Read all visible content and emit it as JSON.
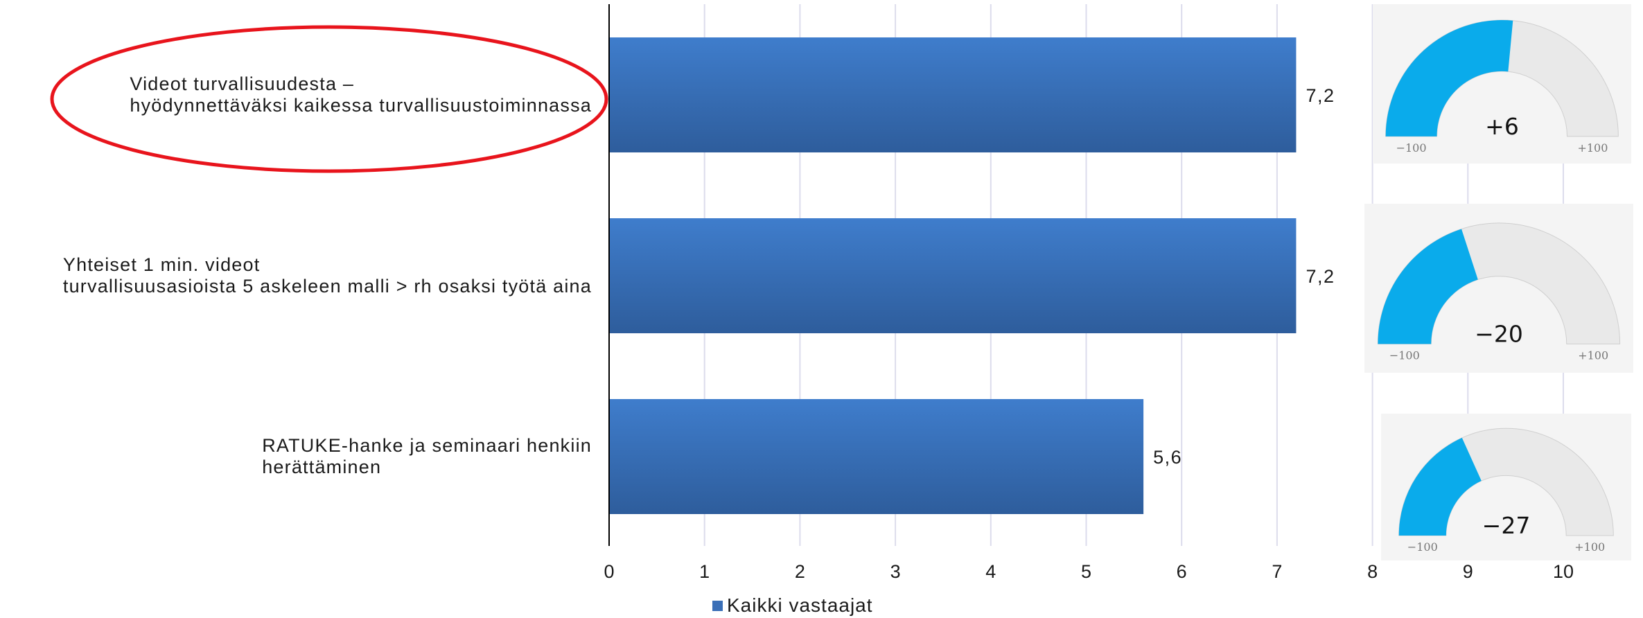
{
  "chart_data": {
    "type": "bar",
    "orientation": "horizontal",
    "categories": [
      {
        "lines": [
          "Videot turvallisuudesta –",
          "hyödynnettäväksi kaikessa turvallisuustoiminnassa"
        ],
        "highlighted": true
      },
      {
        "lines": [
          "Yhteiset 1 min. videot",
          "turvallisuusasioista 5 askeleen malli > rh osaksi työtä aina"
        ],
        "highlighted": false
      },
      {
        "lines": [
          "RATUKE-hanke ja seminaari henkiin",
          "herättäminen"
        ],
        "highlighted": false
      }
    ],
    "series": [
      {
        "name": "Kaikki vastaajat",
        "values": [
          7.2,
          7.2,
          5.6
        ],
        "value_labels": [
          "7,2",
          "7,2",
          "5,6"
        ],
        "color": "#3a6fb7"
      }
    ],
    "xlim": [
      0,
      10
    ],
    "x_ticks": [
      "0",
      "1",
      "2",
      "3",
      "4",
      "5",
      "6",
      "7",
      "8",
      "9",
      "10"
    ],
    "grid": true,
    "legend": "bottom"
  },
  "gauges": [
    {
      "value": 6,
      "label": "+6",
      "min_label": "−100",
      "max_label": "+100"
    },
    {
      "value": -20,
      "label": "−20",
      "min_label": "−100",
      "max_label": "+100"
    },
    {
      "value": -27,
      "label": "−27",
      "min_label": "−100",
      "max_label": "+100"
    }
  ],
  "colors": {
    "bar": "#3a6fb7",
    "highlight_ellipse": "#e8141c",
    "gauge_fill": "#0aabeb",
    "gauge_track": "#e9e9e9"
  }
}
